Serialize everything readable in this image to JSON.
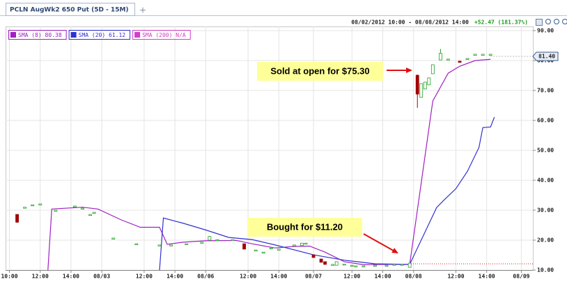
{
  "chart_data": {
    "type": "candlestick",
    "tab_title": "PCLN AugWk2 650 Put (5D - 15M)",
    "tab_add": "+",
    "date_range": "08/02/2012 10:00 - 08/08/2012 14:00",
    "change": "+52.47 (181.37%)",
    "last_price": {
      "value": 81.4,
      "label": "81.40"
    },
    "up_color": "#22a022",
    "down_color": "#a00000",
    "grid": true,
    "xlim": [
      0,
      137
    ],
    "ylim": [
      10,
      90
    ],
    "yticks": [
      {
        "value": 90,
        "label": "90.00"
      },
      {
        "value": 80,
        "label": "80.00"
      },
      {
        "value": 70,
        "label": "70.00"
      },
      {
        "value": 60,
        "label": "60.00"
      },
      {
        "value": 50,
        "label": "50.00"
      },
      {
        "value": 40,
        "label": "40.00"
      },
      {
        "value": 30,
        "label": "30.00"
      },
      {
        "value": 20,
        "label": "20.00"
      },
      {
        "value": 10,
        "label": "10.00"
      }
    ],
    "xticks": [
      {
        "value": 1,
        "label": "10:00"
      },
      {
        "value": 9,
        "label": "12:00"
      },
      {
        "value": 17,
        "label": "14:00"
      },
      {
        "value": 25,
        "label": "08/03"
      },
      {
        "value": 36,
        "label": "12:00"
      },
      {
        "value": 44,
        "label": "14:00"
      },
      {
        "value": 52,
        "label": "08/06"
      },
      {
        "value": 63,
        "label": "12:00"
      },
      {
        "value": 71,
        "label": "14:00"
      },
      {
        "value": 80,
        "label": "08/07"
      },
      {
        "value": 90,
        "label": "12:00"
      },
      {
        "value": 98,
        "label": "14:00"
      },
      {
        "value": 106,
        "label": "08/08"
      },
      {
        "value": 117,
        "label": "12:00"
      },
      {
        "value": 125,
        "label": "14:00"
      },
      {
        "value": 134,
        "label": "08/09"
      }
    ],
    "x": [
      3,
      5,
      7,
      9,
      13,
      18,
      20,
      22,
      23,
      28,
      34,
      40,
      43,
      47,
      51,
      53,
      55,
      59,
      62,
      65,
      67,
      69,
      71,
      75,
      77,
      78,
      80,
      82,
      83,
      85,
      86,
      88,
      90,
      91,
      93,
      96,
      99,
      101,
      103,
      105,
      107,
      108,
      109,
      110,
      111,
      113,
      115,
      118,
      120,
      122,
      124,
      126
    ],
    "open": [
      28.6,
      31.0,
      31.8,
      32.1,
      30.0,
      31.4,
      30.4,
      28.6,
      29.3,
      20.7,
      18.8,
      18.4,
      18.4,
      18.8,
      19.3,
      20.0,
      20.2,
      20.2,
      18.8,
      16.7,
      16.0,
      17.4,
      17.0,
      18.4,
      18.2,
      19.0,
      15.1,
      13.7,
      12.8,
      11.9,
      11.6,
      12.0,
      11.6,
      11.4,
      11.4,
      11.6,
      11.6,
      11.9,
      11.9,
      10.9,
      75.1,
      67.7,
      70.5,
      71.9,
      75.6,
      80.2,
      80.5,
      79.8,
      80.7,
      82.1,
      82.1,
      82.1
    ],
    "high": [
      28.6,
      31.0,
      31.8,
      32.1,
      30.0,
      31.4,
      30.7,
      28.6,
      29.3,
      20.7,
      18.8,
      18.4,
      18.4,
      18.8,
      19.3,
      21.4,
      20.2,
      20.2,
      18.8,
      16.7,
      16.0,
      17.4,
      17.0,
      18.4,
      19.0,
      19.0,
      15.1,
      13.7,
      12.8,
      11.9,
      12.8,
      12.0,
      11.6,
      11.4,
      11.4,
      11.6,
      11.6,
      11.9,
      11.9,
      12.3,
      75.3,
      72.3,
      72.8,
      74.2,
      78.6,
      83.9,
      80.5,
      79.8,
      80.7,
      82.1,
      82.1,
      82.1
    ],
    "low": [
      25.8,
      31.0,
      31.8,
      32.1,
      30.0,
      31.4,
      30.4,
      28.6,
      29.3,
      20.7,
      18.8,
      18.4,
      18.4,
      18.8,
      19.3,
      20.0,
      20.2,
      20.2,
      17.0,
      16.7,
      16.0,
      17.4,
      17.0,
      18.4,
      18.2,
      19.0,
      14.2,
      12.6,
      11.9,
      11.9,
      11.6,
      12.0,
      11.6,
      11.4,
      11.4,
      11.6,
      11.6,
      11.9,
      11.9,
      10.9,
      64.2,
      67.7,
      70.5,
      71.9,
      75.6,
      80.2,
      80.5,
      79.4,
      80.7,
      82.1,
      82.1,
      82.1
    ],
    "close": [
      26.0,
      31.0,
      31.8,
      32.1,
      30.0,
      31.4,
      30.7,
      28.6,
      29.3,
      20.7,
      18.8,
      18.4,
      18.4,
      18.8,
      19.3,
      21.2,
      20.2,
      20.2,
      17.0,
      16.7,
      16.0,
      17.4,
      17.0,
      18.4,
      19.0,
      19.0,
      14.2,
      12.6,
      11.9,
      11.9,
      12.8,
      12.0,
      11.6,
      11.4,
      11.4,
      11.6,
      11.6,
      11.9,
      11.9,
      12.3,
      68.8,
      72.3,
      72.8,
      74.2,
      78.6,
      82.4,
      80.5,
      79.4,
      80.7,
      82.1,
      82.1,
      82.1
    ],
    "series": [
      {
        "name": "SMA (8)",
        "legend_value": 80.38,
        "color": "#a020c0",
        "x": [
          11,
          12,
          20,
          24,
          30,
          35,
          40,
          42,
          46,
          52,
          60,
          64,
          70,
          75,
          79,
          83,
          88,
          93,
          100,
          105,
          111,
          115,
          118,
          122,
          126
        ],
        "values": [
          10,
          30.4,
          31.0,
          30.4,
          26.8,
          24.3,
          24.3,
          18.6,
          19.3,
          19.8,
          19.9,
          18.8,
          17.4,
          17.9,
          18.0,
          16.0,
          12.8,
          11.8,
          11.9,
          11.9,
          66.5,
          75.8,
          78.1,
          80.0,
          80.4
        ]
      },
      {
        "name": "SMA (20)",
        "legend_value": 61.12,
        "color": "#3030d0",
        "x": [
          40,
          41,
          46,
          52,
          58,
          64,
          70,
          80,
          88,
          96,
          105,
          112,
          114,
          117,
          120,
          123,
          124,
          126,
          127
        ],
        "values": [
          10,
          27.4,
          25.7,
          23.4,
          20.9,
          20.2,
          18.4,
          15.1,
          13.3,
          12.1,
          11.9,
          30.9,
          33.5,
          37.2,
          43.0,
          51.0,
          57.6,
          57.8,
          61.1
        ]
      },
      {
        "name": "SMA (200)",
        "legend_value": "N/A",
        "color": "#d040c8",
        "x": [],
        "values": []
      }
    ],
    "annotations": [
      "Sold at open for $75.30",
      "Bought for $11.20"
    ]
  }
}
